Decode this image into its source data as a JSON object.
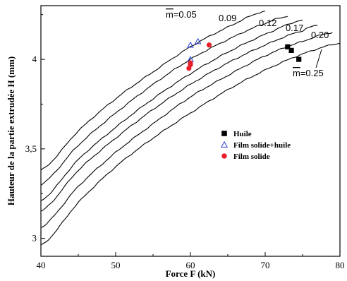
{
  "chart_data": {
    "type": "line",
    "xlabel": "Force F (kN)",
    "ylabel": "Hauteur de la partie extrudée H (mm)",
    "xlim": [
      40,
      80
    ],
    "ylim": [
      2.9,
      4.3
    ],
    "x_ticks": [
      40,
      50,
      60,
      70,
      80
    ],
    "x_tick_labels": [
      "40",
      "50",
      "60",
      "70",
      "80"
    ],
    "y_ticks": [
      3.0,
      3.5,
      4.0
    ],
    "y_tick_labels": [
      "3",
      "3,5",
      "4"
    ],
    "grid": false,
    "series": [
      {
        "name": "m=0.05",
        "label_prefix": "m",
        "label_value": "=0.05",
        "x": [
          40,
          45,
          50,
          55,
          60,
          65,
          70
        ],
        "y": [
          3.38,
          3.6,
          3.78,
          3.93,
          4.07,
          4.18,
          4.27
        ]
      },
      {
        "name": "0.09",
        "x": [
          40,
          45,
          50,
          55,
          60,
          65,
          70,
          73
        ],
        "y": [
          3.3,
          3.52,
          3.7,
          3.86,
          4.0,
          4.11,
          4.2,
          4.24
        ]
      },
      {
        "name": "0.12",
        "x": [
          40,
          45,
          50,
          55,
          60,
          65,
          70,
          75
        ],
        "y": [
          3.21,
          3.44,
          3.62,
          3.78,
          3.92,
          4.04,
          4.14,
          4.22
        ]
      },
      {
        "name": "0.17",
        "x": [
          40,
          45,
          50,
          55,
          60,
          65,
          70,
          75,
          77
        ],
        "y": [
          3.15,
          3.38,
          3.56,
          3.72,
          3.86,
          3.98,
          4.08,
          4.16,
          4.19
        ]
      },
      {
        "name": "0.20",
        "x": [
          40,
          45,
          50,
          55,
          60,
          65,
          70,
          75,
          79
        ],
        "y": [
          3.06,
          3.29,
          3.48,
          3.64,
          3.79,
          3.91,
          4.02,
          4.1,
          4.15
        ]
      },
      {
        "name": "m=0.25",
        "label_prefix": "m",
        "label_value": "=0.25",
        "x": [
          40,
          45,
          50,
          55,
          60,
          65,
          70,
          75,
          80
        ],
        "y": [
          2.96,
          3.2,
          3.4,
          3.56,
          3.7,
          3.83,
          3.94,
          4.03,
          4.09
        ]
      }
    ],
    "points": [
      {
        "name": "Huile",
        "marker": "filled-square",
        "color": "#000000",
        "x": [
          73.0,
          73.5,
          74.5
        ],
        "y": [
          4.07,
          4.05,
          4.0
        ]
      },
      {
        "name": "Film solide+huile",
        "marker": "open-triangle",
        "color": "#2a3fd6",
        "x": [
          60.0,
          61.0,
          60.0
        ],
        "y": [
          4.08,
          4.1,
          4.0
        ]
      },
      {
        "name": "Film solide",
        "marker": "filled-circle",
        "color": "#e8202a",
        "x": [
          62.5,
          60.0,
          60.0,
          59.8
        ],
        "y": [
          4.08,
          3.98,
          3.97,
          3.95
        ]
      }
    ],
    "legend_position": "center-right"
  }
}
